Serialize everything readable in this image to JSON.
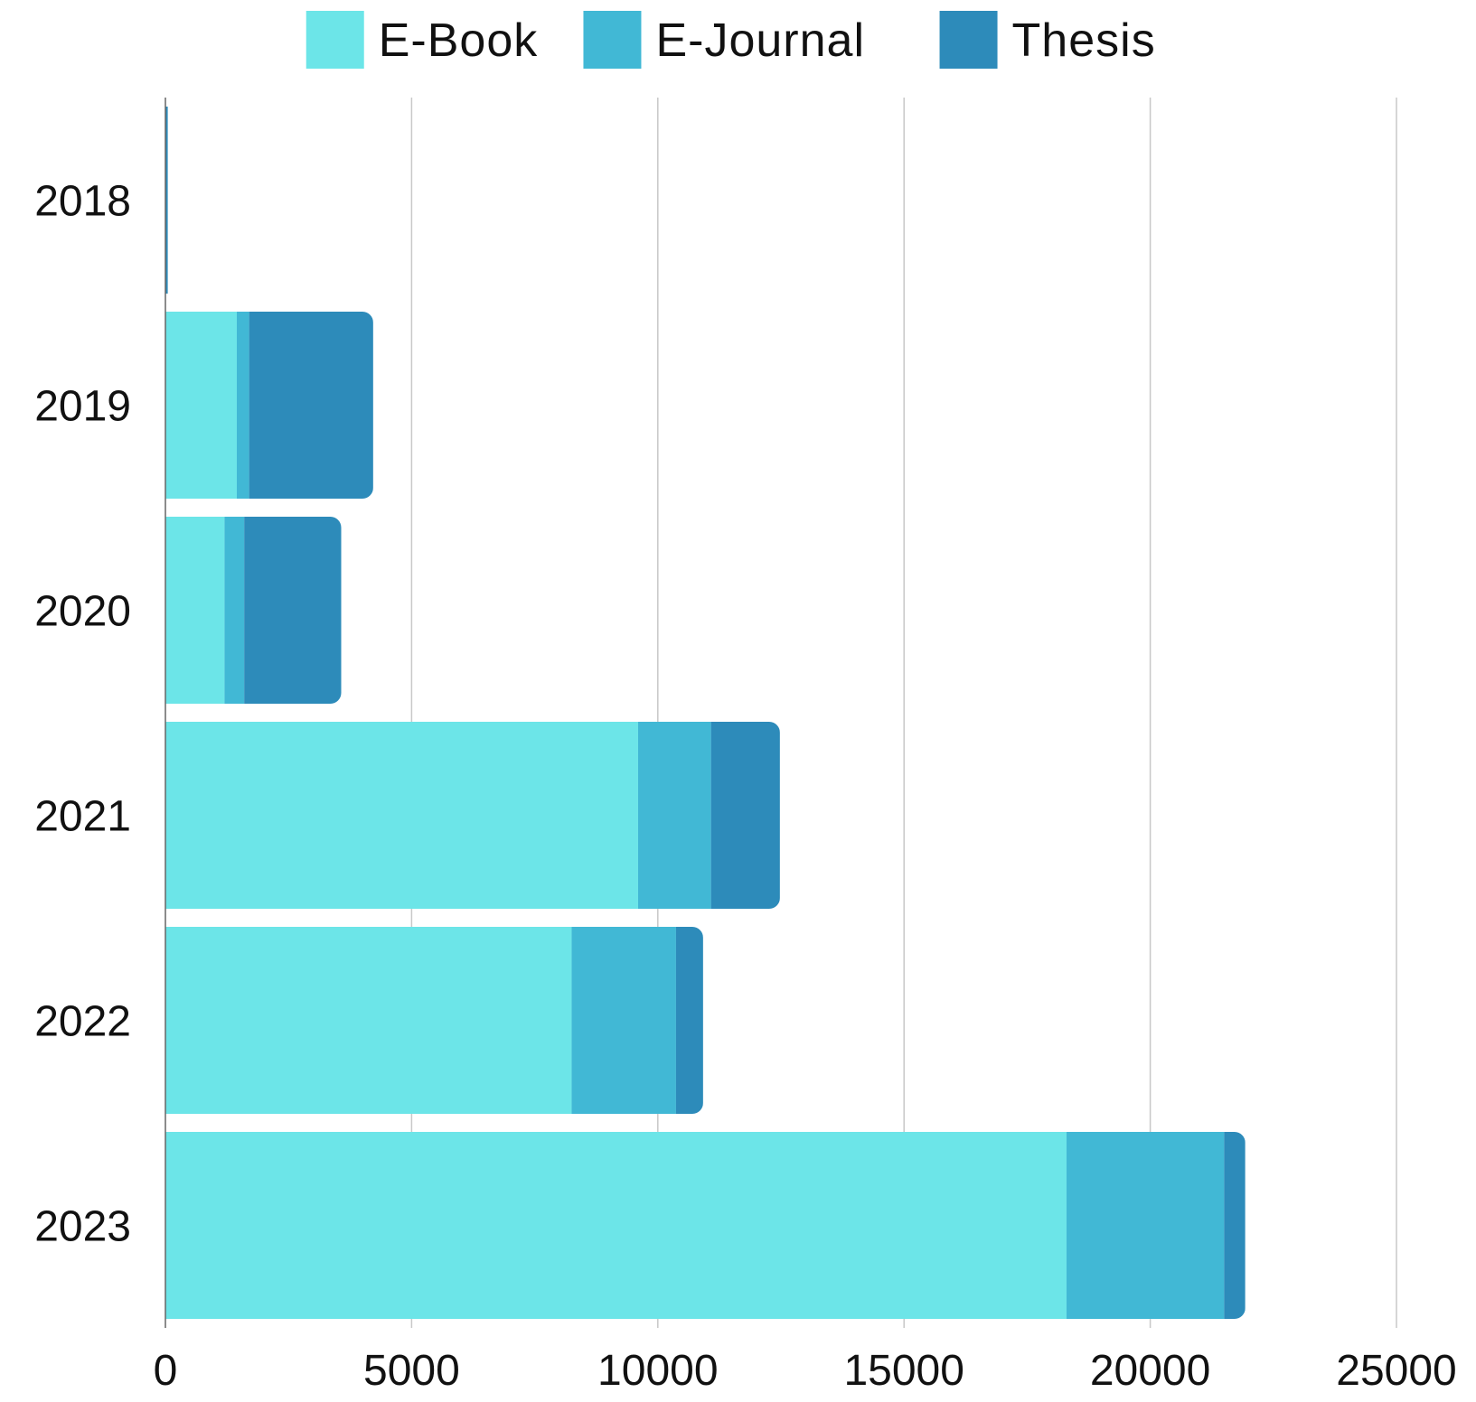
{
  "chart_data": {
    "type": "bar",
    "orientation": "horizontal",
    "stacked": true,
    "title": "",
    "xlabel": "",
    "ylabel": "",
    "categories": [
      "2018",
      "2019",
      "2020",
      "2021",
      "2022",
      "2023"
    ],
    "series": [
      {
        "name": "E-Book",
        "color": "#6ce5e8",
        "values": [
          0,
          1450,
          1200,
          9600,
          8250,
          18300
        ]
      },
      {
        "name": "E-Journal",
        "color": "#41b8d5",
        "values": [
          0,
          250,
          400,
          1480,
          2120,
          3200
        ]
      },
      {
        "name": "Thesis",
        "color": "#2d8bba",
        "values": [
          50,
          2520,
          1970,
          1400,
          550,
          430
        ]
      }
    ],
    "xlim": [
      0,
      25000
    ],
    "x_ticks": [
      "0",
      "5000",
      "10000",
      "15000",
      "20000",
      "25000"
    ],
    "grid": "vertical",
    "legend_position": "top-center",
    "gridline_color": "#c8c8c8",
    "axis_color": "#666666"
  }
}
